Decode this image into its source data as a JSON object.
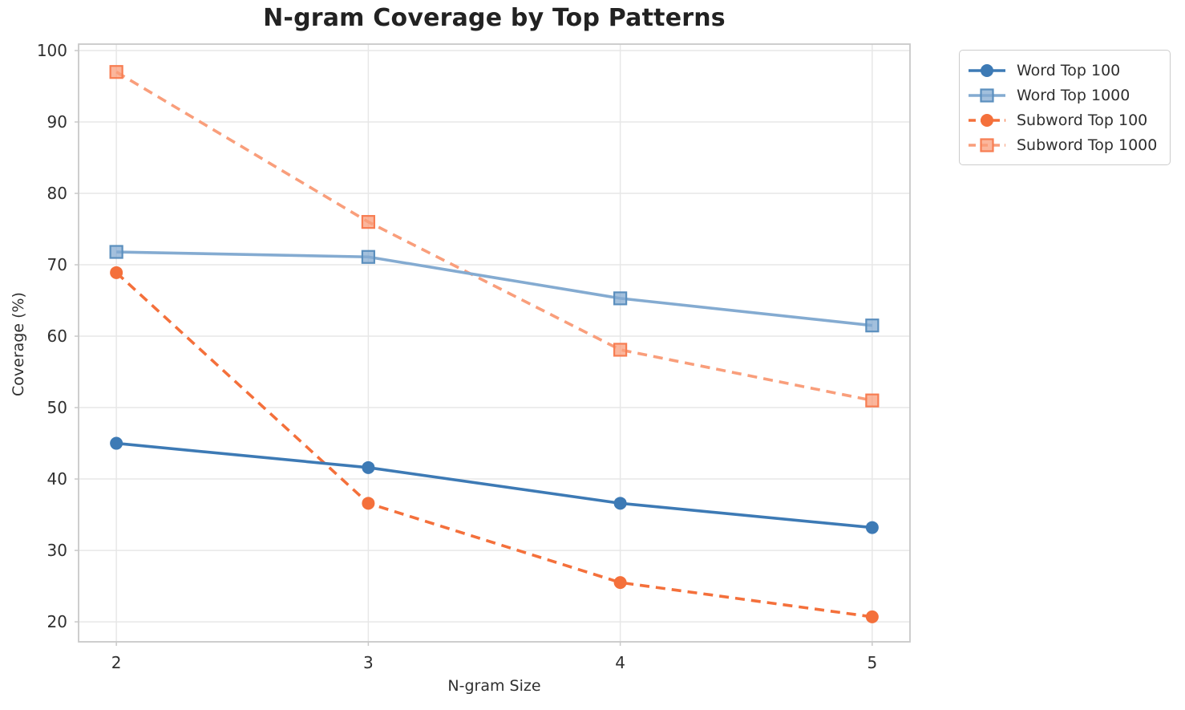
{
  "chart_data": {
    "type": "line",
    "title": "N-gram Coverage by Top Patterns",
    "xlabel": "N-gram Size",
    "ylabel": "Coverage (%)",
    "x": [
      2,
      3,
      4,
      5
    ],
    "xticks": [
      "2",
      "3",
      "4",
      "5"
    ],
    "yticks": [
      20,
      30,
      40,
      50,
      60,
      70,
      80,
      90,
      100
    ],
    "xlim": [
      1.85,
      5.15
    ],
    "ylim": [
      17.2,
      100.9
    ],
    "grid": true,
    "legend_position": "outside upper right",
    "series": [
      {
        "name": "Word Top 100",
        "color": "#3d7ab5",
        "edge_color": "#33699e",
        "marker": "circle",
        "line_style": "solid",
        "values": [
          45.0,
          41.6,
          36.6,
          33.2
        ]
      },
      {
        "name": "Word Top 1000",
        "color": "#84abd1",
        "edge_color": "#5b8fbe",
        "marker": "square",
        "line_style": "solid",
        "values": [
          71.8,
          71.1,
          65.3,
          61.5
        ]
      },
      {
        "name": "Subword Top 100",
        "color": "#f4703b",
        "edge_color": "#e05c28",
        "marker": "circle",
        "line_style": "dashed",
        "values": [
          68.9,
          36.6,
          25.5,
          20.7
        ]
      },
      {
        "name": "Subword Top 1000",
        "color": "#f99e7b",
        "edge_color": "#f77d52",
        "marker": "square",
        "line_style": "dashed",
        "values": [
          97.0,
          76.0,
          58.1,
          51.0
        ]
      }
    ],
    "style": {
      "grid_color": "#e7e7e7",
      "spine_color": "#c9c9c9",
      "tick_text_color": "#2f2f2f",
      "title_color": "#222222",
      "background": "#ffffff"
    }
  }
}
